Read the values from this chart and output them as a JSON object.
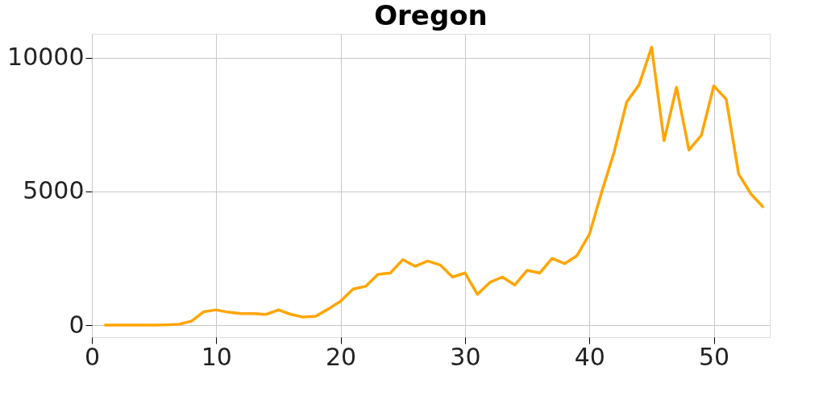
{
  "chart_data": {
    "type": "line",
    "title": "Oregon",
    "x": [
      1,
      2,
      3,
      4,
      5,
      6,
      7,
      8,
      9,
      10,
      11,
      12,
      13,
      14,
      15,
      16,
      17,
      18,
      19,
      20,
      21,
      22,
      23,
      24,
      25,
      26,
      27,
      28,
      29,
      30,
      31,
      32,
      33,
      34,
      35,
      36,
      37,
      38,
      39,
      40,
      41,
      42,
      43,
      44,
      45,
      46,
      47,
      48,
      49,
      50,
      51,
      52,
      53,
      54
    ],
    "series": [
      {
        "color": "#ffa500",
        "values": [
          0,
          0,
          0,
          0,
          0,
          10,
          30,
          150,
          500,
          570,
          480,
          430,
          430,
          400,
          570,
          400,
          300,
          330,
          600,
          900,
          1350,
          1450,
          1900,
          1950,
          2450,
          2200,
          2400,
          2250,
          1800,
          1950,
          1150,
          1600,
          1800,
          1500,
          2050,
          1950,
          2500,
          2300,
          2600,
          3400,
          5000,
          6500,
          8350,
          9000,
          10400,
          6900,
          8900,
          6550,
          7100,
          8950,
          8450,
          5650,
          4900,
          4400
        ]
      }
    ],
    "xlim": [
      0,
      54.5
    ],
    "xticks": [
      0,
      10,
      20,
      30,
      40,
      50
    ],
    "ylim": [
      -450,
      10900
    ],
    "yticks": [
      0,
      5000,
      10000
    ],
    "grid": true,
    "marker": "none",
    "line_style": "solid"
  }
}
